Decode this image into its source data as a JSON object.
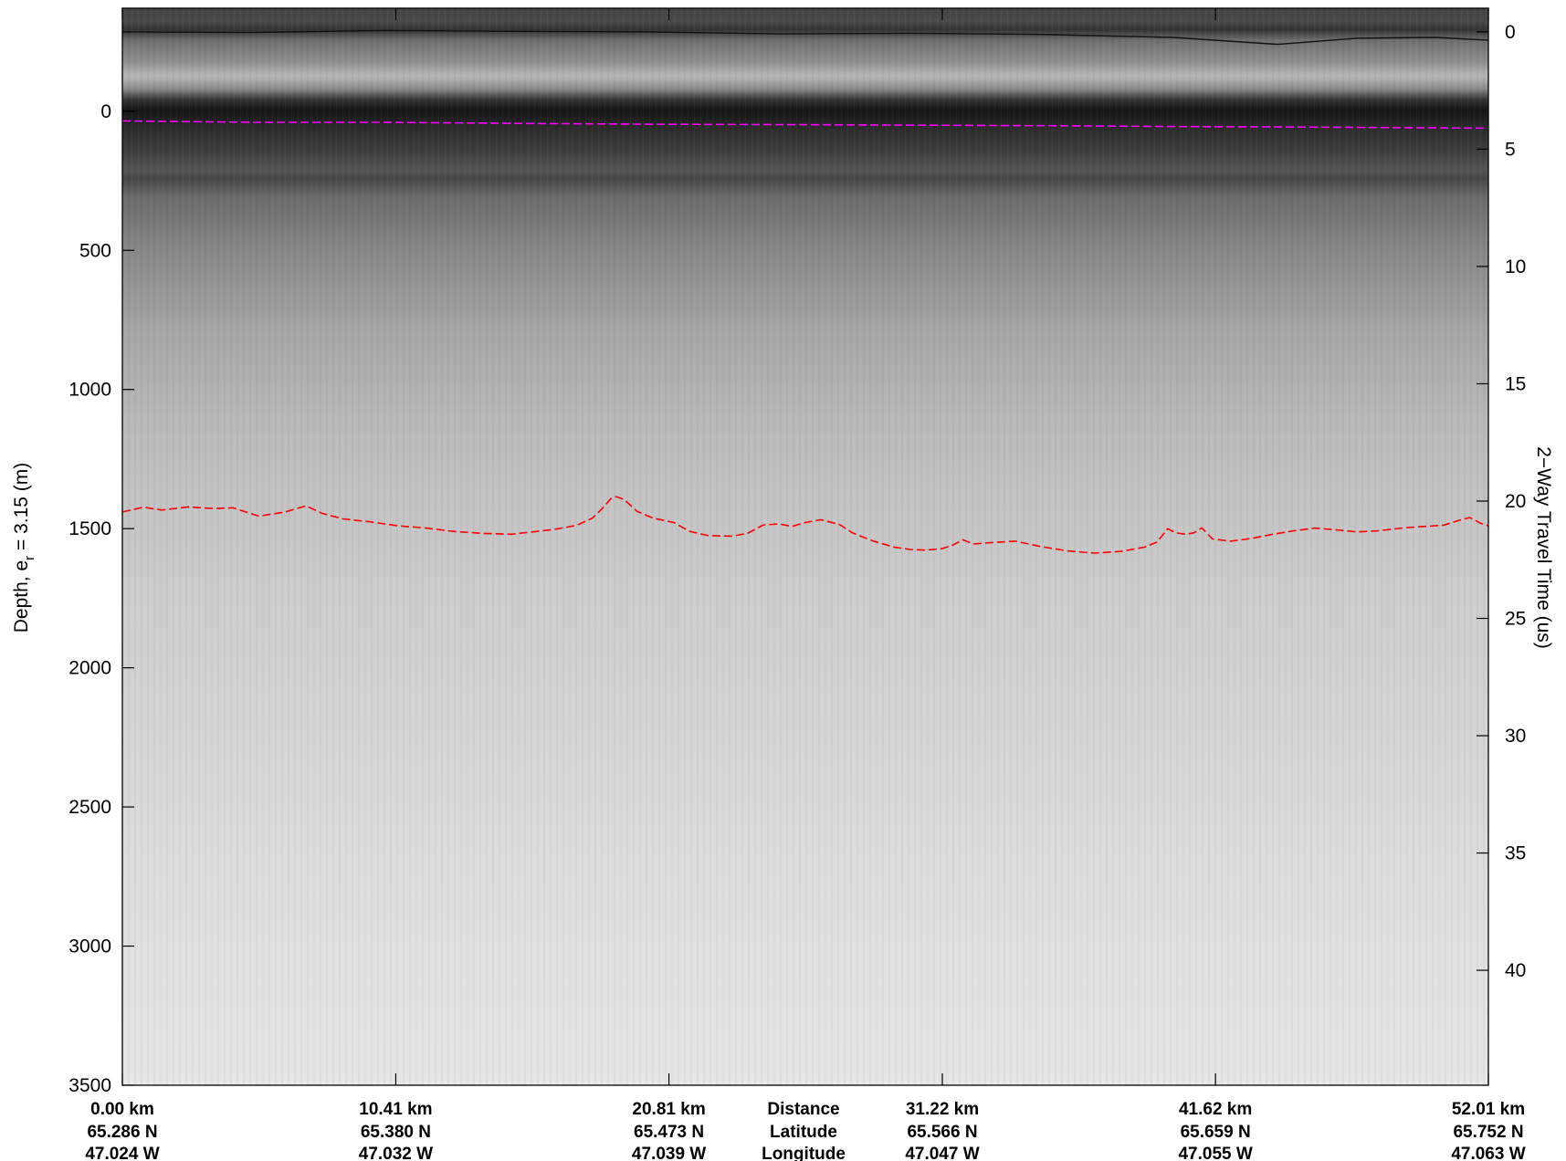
{
  "chart_data": {
    "type": "radargram",
    "ylabel_left": "Depth, e",
    "ylabel_left_sub": "r",
    "ylabel_left_rest": " = 3.15 (m)",
    "ylabel_right": "2−Way Travel Time (us)",
    "xlim_km": [
      0,
      52.01
    ],
    "ylim_depth_m": [
      3500,
      -370
    ],
    "depth_ticks": [
      {
        "value": 0,
        "label": "0"
      },
      {
        "value": 500,
        "label": "500"
      },
      {
        "value": 1000,
        "label": "1000"
      },
      {
        "value": 1500,
        "label": "1500"
      },
      {
        "value": 2000,
        "label": "2000"
      },
      {
        "value": 2500,
        "label": "2500"
      },
      {
        "value": 3000,
        "label": "3000"
      },
      {
        "value": 3500,
        "label": "3500"
      }
    ],
    "twt_ticks": [
      {
        "value": 0,
        "label": "0"
      },
      {
        "value": 5,
        "label": "5"
      },
      {
        "value": 10,
        "label": "10"
      },
      {
        "value": 15,
        "label": "15"
      },
      {
        "value": 20,
        "label": "20"
      },
      {
        "value": 25,
        "label": "25"
      },
      {
        "value": 30,
        "label": "30"
      },
      {
        "value": 35,
        "label": "35"
      },
      {
        "value": 40,
        "label": "40"
      }
    ],
    "twt_origin_depth_m": -285,
    "twt_depth_per_us": 84.3,
    "x_ticks": [
      {
        "km": 0.0,
        "distance": "0.00 km",
        "latitude": "65.286 N",
        "longitude": "47.024 W"
      },
      {
        "km": 10.41,
        "distance": "10.41 km",
        "latitude": "65.380 N",
        "longitude": "47.032 W"
      },
      {
        "km": 20.81,
        "distance": "20.81 km",
        "latitude": "65.473 N",
        "longitude": "47.039 W"
      },
      {
        "km": 31.22,
        "distance": "31.22 km",
        "latitude": "65.566 N",
        "longitude": "47.047 W"
      },
      {
        "km": 41.62,
        "distance": "41.62 km",
        "latitude": "65.659 N",
        "longitude": "47.055 W"
      },
      {
        "km": 52.01,
        "distance": "52.01 km",
        "latitude": "65.752 N",
        "longitude": "47.063 W"
      }
    ],
    "row_labels": {
      "distance": "Distance",
      "latitude": "Latitude",
      "longitude": "Longitude"
    },
    "series": [
      {
        "kind": "aircraft-surface-return",
        "color": "#111111",
        "style": "solid",
        "points": [
          [
            0,
            -285
          ],
          [
            5,
            -283
          ],
          [
            10,
            -290
          ],
          [
            15,
            -287
          ],
          [
            20,
            -285
          ],
          [
            25,
            -278
          ],
          [
            30,
            -280
          ],
          [
            35,
            -276
          ],
          [
            40,
            -265
          ],
          [
            44,
            -240
          ],
          [
            47,
            -262
          ],
          [
            50,
            -265
          ],
          [
            52.01,
            -255
          ]
        ]
      },
      {
        "kind": "ice-surface-pick",
        "color": "#ff00ff",
        "style": "dashed",
        "points": [
          [
            0,
            35
          ],
          [
            2,
            37
          ],
          [
            5,
            40
          ],
          [
            10,
            40
          ],
          [
            15,
            44
          ],
          [
            20,
            47
          ],
          [
            25,
            48
          ],
          [
            30,
            50
          ],
          [
            35,
            52
          ],
          [
            40,
            55
          ],
          [
            45,
            57
          ],
          [
            50,
            60
          ],
          [
            52.01,
            61
          ]
        ]
      },
      {
        "kind": "ice-bottom-pick",
        "color": "#ff0000",
        "style": "dashed",
        "points": [
          [
            0,
            1440
          ],
          [
            0.8,
            1423
          ],
          [
            1.5,
            1433
          ],
          [
            2.5,
            1422
          ],
          [
            3.5,
            1428
          ],
          [
            4.2,
            1425
          ],
          [
            5.2,
            1455
          ],
          [
            6.2,
            1440
          ],
          [
            7.0,
            1418
          ],
          [
            7.6,
            1445
          ],
          [
            8.4,
            1465
          ],
          [
            9.4,
            1475
          ],
          [
            10.5,
            1490
          ],
          [
            11.5,
            1497
          ],
          [
            12.6,
            1510
          ],
          [
            13.7,
            1517
          ],
          [
            14.8,
            1520
          ],
          [
            15.6,
            1512
          ],
          [
            16.5,
            1502
          ],
          [
            17.3,
            1488
          ],
          [
            17.9,
            1462
          ],
          [
            18.3,
            1425
          ],
          [
            18.6,
            1392
          ],
          [
            18.8,
            1385
          ],
          [
            19.1,
            1395
          ],
          [
            19.6,
            1438
          ],
          [
            20.2,
            1462
          ],
          [
            21.0,
            1478
          ],
          [
            21.6,
            1510
          ],
          [
            22.3,
            1525
          ],
          [
            23.2,
            1527
          ],
          [
            23.8,
            1517
          ],
          [
            24.4,
            1487
          ],
          [
            25.0,
            1483
          ],
          [
            25.5,
            1492
          ],
          [
            26.0,
            1478
          ],
          [
            26.6,
            1468
          ],
          [
            27.3,
            1485
          ],
          [
            27.8,
            1515
          ],
          [
            28.6,
            1545
          ],
          [
            29.4,
            1567
          ],
          [
            30.0,
            1575
          ],
          [
            30.6,
            1577
          ],
          [
            31.2,
            1572
          ],
          [
            31.6,
            1560
          ],
          [
            32.0,
            1540
          ],
          [
            32.4,
            1555
          ],
          [
            33.1,
            1550
          ],
          [
            34.0,
            1545
          ],
          [
            35.0,
            1565
          ],
          [
            36.0,
            1580
          ],
          [
            37.0,
            1588
          ],
          [
            38.0,
            1582
          ],
          [
            38.9,
            1567
          ],
          [
            39.4,
            1548
          ],
          [
            39.8,
            1500
          ],
          [
            40.1,
            1515
          ],
          [
            40.5,
            1520
          ],
          [
            40.8,
            1515
          ],
          [
            41.1,
            1497
          ],
          [
            41.5,
            1537
          ],
          [
            42.2,
            1545
          ],
          [
            43.0,
            1535
          ],
          [
            43.8,
            1520
          ],
          [
            44.6,
            1508
          ],
          [
            45.4,
            1498
          ],
          [
            46.3,
            1505
          ],
          [
            47.0,
            1512
          ],
          [
            47.8,
            1508
          ],
          [
            48.8,
            1497
          ],
          [
            49.6,
            1492
          ],
          [
            50.3,
            1488
          ],
          [
            50.9,
            1470
          ],
          [
            51.3,
            1460
          ],
          [
            51.7,
            1480
          ],
          [
            52.01,
            1490
          ]
        ]
      }
    ]
  }
}
